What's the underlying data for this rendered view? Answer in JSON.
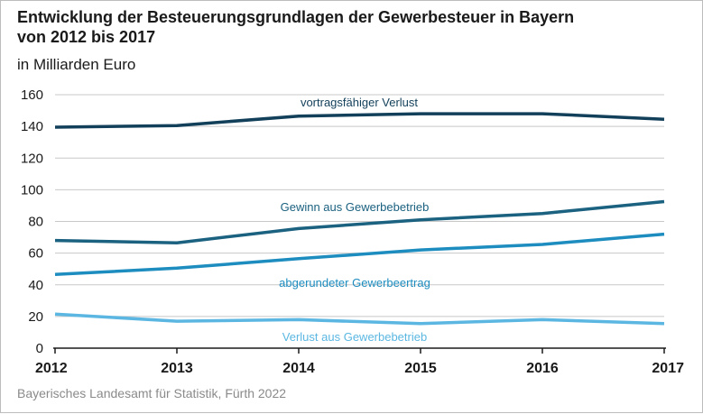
{
  "title_line1": "Entwicklung der Besteuerungsgrundlagen der Gewerbesteuer in Bayern",
  "title_line2": "von 2012 bis 2017",
  "subtitle": "in Milliarden Euro",
  "source": "Bayerisches Landesamt für Statistik, Fürth 2022",
  "colors": {
    "vortrag": "#123f5a",
    "gewinn": "#1b6180",
    "ertrag": "#1d8cbf",
    "verlust": "#5bb7e2",
    "grid": "#c8c8c8",
    "axis": "#1a1a1a"
  },
  "chart_data": {
    "type": "line",
    "x": [
      "2012",
      "2013",
      "2014",
      "2015",
      "2016",
      "2017"
    ],
    "ylim": [
      0,
      160
    ],
    "yticks": [
      0,
      20,
      40,
      60,
      80,
      100,
      120,
      140,
      160
    ],
    "grid": true,
    "series": [
      {
        "name": "vortragsfähiger Verlust",
        "key": "vortrag",
        "values": [
          139.5,
          140.5,
          146.5,
          148,
          148,
          144.5
        ]
      },
      {
        "name": "Gewinn aus Gewerbebetrieb",
        "key": "gewinn",
        "values": [
          68,
          66.5,
          75.5,
          81,
          85,
          92.5
        ]
      },
      {
        "name": "abgerundeter Gewerbeertrag",
        "key": "ertrag",
        "values": [
          46.5,
          50.5,
          56.5,
          62,
          65.5,
          72
        ]
      },
      {
        "name": "Verlust aus Gewerbebetrieb",
        "key": "verlust",
        "values": [
          21.5,
          17,
          18,
          15.5,
          18,
          15.5
        ]
      }
    ]
  }
}
